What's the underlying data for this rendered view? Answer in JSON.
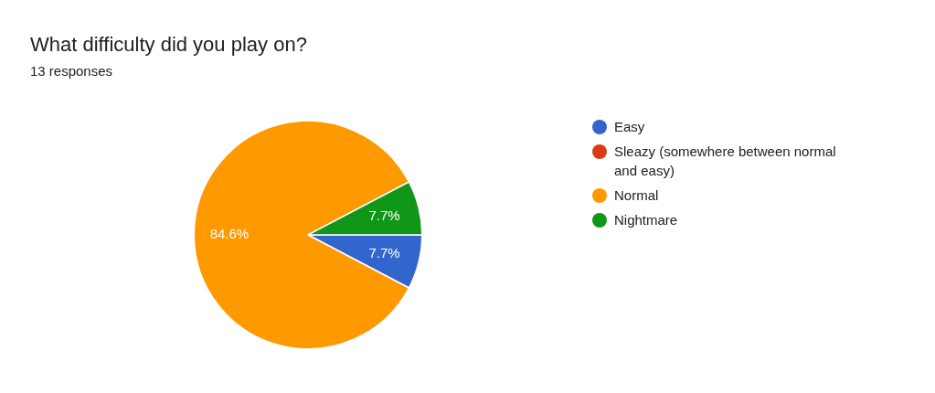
{
  "chart_data": {
    "type": "pie",
    "title": "What difficulty did you play on?",
    "subtitle": "13 responses",
    "categories": [
      "Easy",
      "Sleazy (somewhere between normal and easy)",
      "Normal",
      "Nightmare"
    ],
    "values": [
      7.7,
      0,
      84.6,
      7.7
    ],
    "colors": [
      "#3366cc",
      "#dc3912",
      "#ff9900",
      "#109618"
    ],
    "value_labels": [
      "7.7%",
      null,
      "84.6%",
      "7.7%"
    ],
    "legend": "right"
  }
}
